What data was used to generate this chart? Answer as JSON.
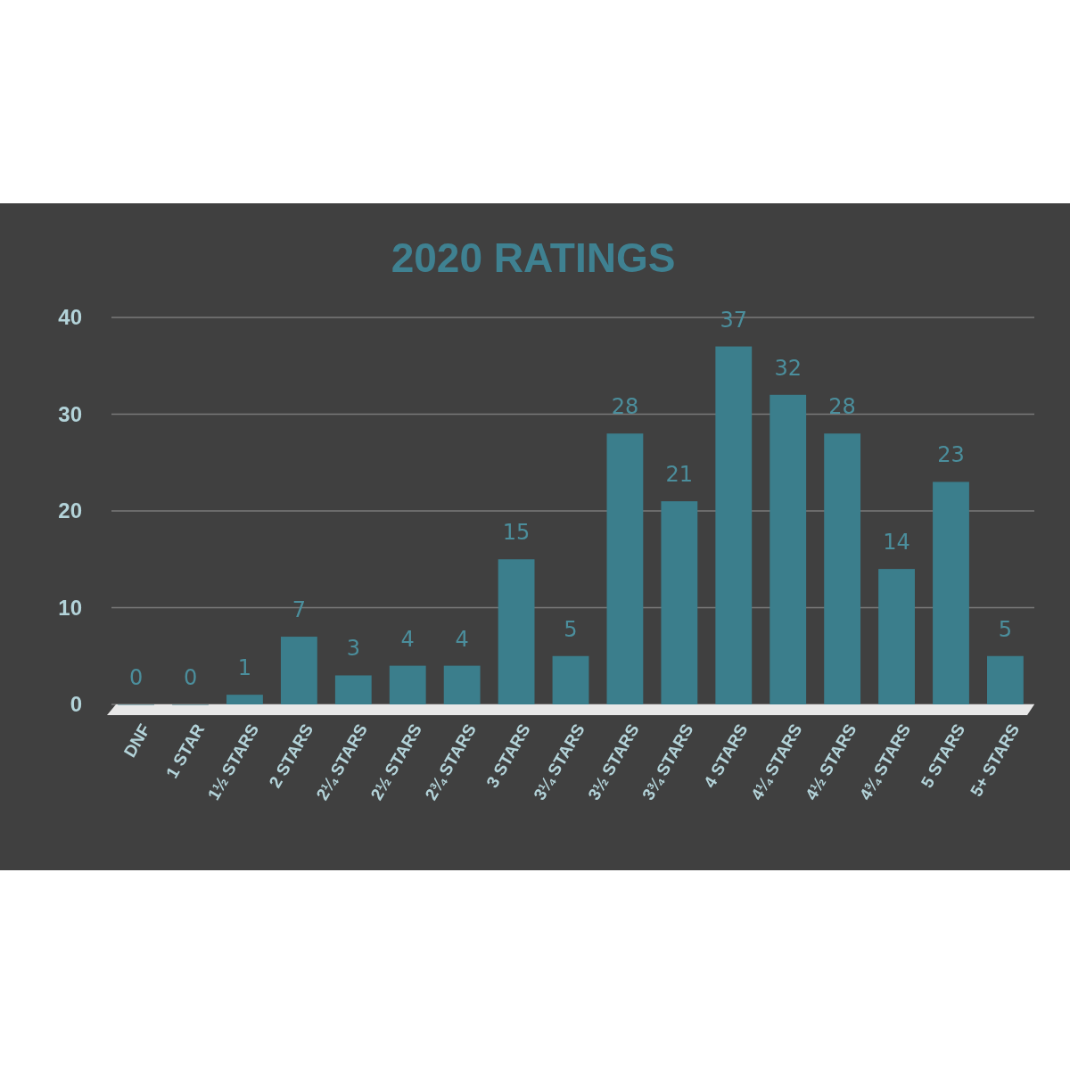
{
  "chart_data": {
    "type": "bar",
    "title": "2020 RATINGS",
    "categories": [
      "DNF",
      "1 STAR",
      "1½ STARS",
      "2 STARS",
      "2¼ STARS",
      "2½ STARS",
      "2¾ STARS",
      "3 STARS",
      "3¼ STARS",
      "3½ STARS",
      "3¾ STARS",
      "4 STARS",
      "4¼ STARS",
      "4½ STARS",
      "4¾ STARS",
      "5 STARS",
      "5+ STARS"
    ],
    "values": [
      0,
      0,
      1,
      7,
      3,
      4,
      4,
      15,
      5,
      28,
      21,
      37,
      32,
      28,
      14,
      23,
      5
    ],
    "color": "#3b7e8c",
    "ylim": [
      0,
      40
    ],
    "yticks": [
      0,
      10,
      20,
      30,
      40
    ],
    "grid": "y",
    "data_labels": true
  }
}
